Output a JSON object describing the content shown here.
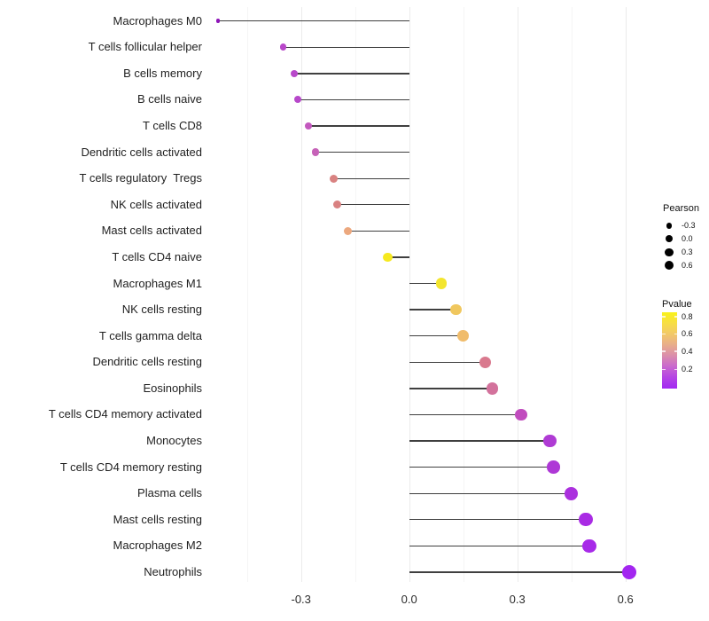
{
  "chart_data": {
    "type": "scatter",
    "variant": "lollipop",
    "title": "",
    "xlabel": "",
    "ylabel": "",
    "x_ticks": [
      "-0.3",
      "0.0",
      "0.3",
      "0.6"
    ],
    "x_tick_values": [
      -0.3,
      0.0,
      0.3,
      0.6
    ],
    "x_minor_grid_values": [
      -0.45,
      -0.15,
      0.15,
      0.45
    ],
    "xlim": [
      -0.58,
      0.64
    ],
    "grid": "vertical-major-and-minor",
    "legend_position": "right",
    "rows": [
      {
        "label": "Macrophages M0",
        "pearson": -0.53,
        "pvalue": 0.02,
        "color": "#8E14B8"
      },
      {
        "label": "T cells follicular helper",
        "pearson": -0.35,
        "pvalue": 0.15,
        "color": "#B847C9"
      },
      {
        "label": "B cells memory",
        "pearson": -0.32,
        "pvalue": 0.16,
        "color": "#B848CA"
      },
      {
        "label": "B cells naive",
        "pearson": -0.31,
        "pvalue": 0.16,
        "color": "#B748CA"
      },
      {
        "label": "T cells CD8",
        "pearson": -0.28,
        "pvalue": 0.22,
        "color": "#C358BE"
      },
      {
        "label": "Dendritic cells activated",
        "pearson": -0.26,
        "pvalue": 0.26,
        "color": "#C662B8"
      },
      {
        "label": "T cells regulatory  Tregs",
        "pearson": -0.21,
        "pvalue": 0.45,
        "color": "#D98281"
      },
      {
        "label": "NK cells activated",
        "pearson": -0.2,
        "pvalue": 0.45,
        "color": "#D98181"
      },
      {
        "label": "Mast cells activated",
        "pearson": -0.17,
        "pvalue": 0.55,
        "color": "#ECA87E"
      },
      {
        "label": "T cells CD4 naive",
        "pearson": -0.06,
        "pvalue": 0.8,
        "color": "#F6E91F"
      },
      {
        "label": "Macrophages M1",
        "pearson": 0.09,
        "pvalue": 0.78,
        "color": "#F3E52E"
      },
      {
        "label": "NK cells resting",
        "pearson": 0.13,
        "pvalue": 0.64,
        "color": "#F0C75E"
      },
      {
        "label": "T cells gamma delta",
        "pearson": 0.15,
        "pvalue": 0.6,
        "color": "#F0BC6B"
      },
      {
        "label": "Dendritic cells resting",
        "pearson": 0.21,
        "pvalue": 0.44,
        "color": "#D9798E"
      },
      {
        "label": "Eosinophils",
        "pearson": 0.23,
        "pvalue": 0.4,
        "color": "#D3729C"
      },
      {
        "label": "T cells CD4 memory activated",
        "pearson": 0.31,
        "pvalue": 0.25,
        "color": "#C14CBE"
      },
      {
        "label": "Monocytes",
        "pearson": 0.39,
        "pvalue": 0.12,
        "color": "#AF3BD4"
      },
      {
        "label": "T cells CD4 memory resting",
        "pearson": 0.4,
        "pvalue": 0.12,
        "color": "#AE38D6"
      },
      {
        "label": "Plasma cells",
        "pearson": 0.45,
        "pvalue": 0.08,
        "color": "#AB30DE"
      },
      {
        "label": "Mast cells resting",
        "pearson": 0.49,
        "pvalue": 0.06,
        "color": "#A92BE4"
      },
      {
        "label": "Macrophages M2",
        "pearson": 0.5,
        "pvalue": 0.05,
        "color": "#A72AE8"
      },
      {
        "label": "Neutrophils",
        "pearson": 0.61,
        "pvalue": 0.03,
        "color": "#A326F0"
      }
    ],
    "size_legend": {
      "title": "Pearson",
      "entries": [
        {
          "label": "-0.3",
          "value": -0.3
        },
        {
          "label": "0.0",
          "value": 0.0
        },
        {
          "label": "0.3",
          "value": 0.3
        },
        {
          "label": "0.6",
          "value": 0.6
        }
      ]
    },
    "color_legend": {
      "title": "Pvalue",
      "tick_labels": [
        "0.8",
        "0.6",
        "0.4",
        "0.2"
      ],
      "range_bottom_to_top": [
        0.0,
        0.85
      ],
      "gradient_top_to_bottom": [
        "#F9F219",
        "#F7DE44",
        "#F2C869",
        "#E8AC8C",
        "#DA8DAC",
        "#C968CE",
        "#B443E5",
        "#A228F2"
      ]
    }
  },
  "colors": {
    "background": "#FFFFFF",
    "segment": "#3F3F3F",
    "grid_major": "#EBEBEB",
    "grid_minor": "#F5F5F5",
    "axis_text": "#1F1F1F",
    "legend_dot": "#000000"
  }
}
